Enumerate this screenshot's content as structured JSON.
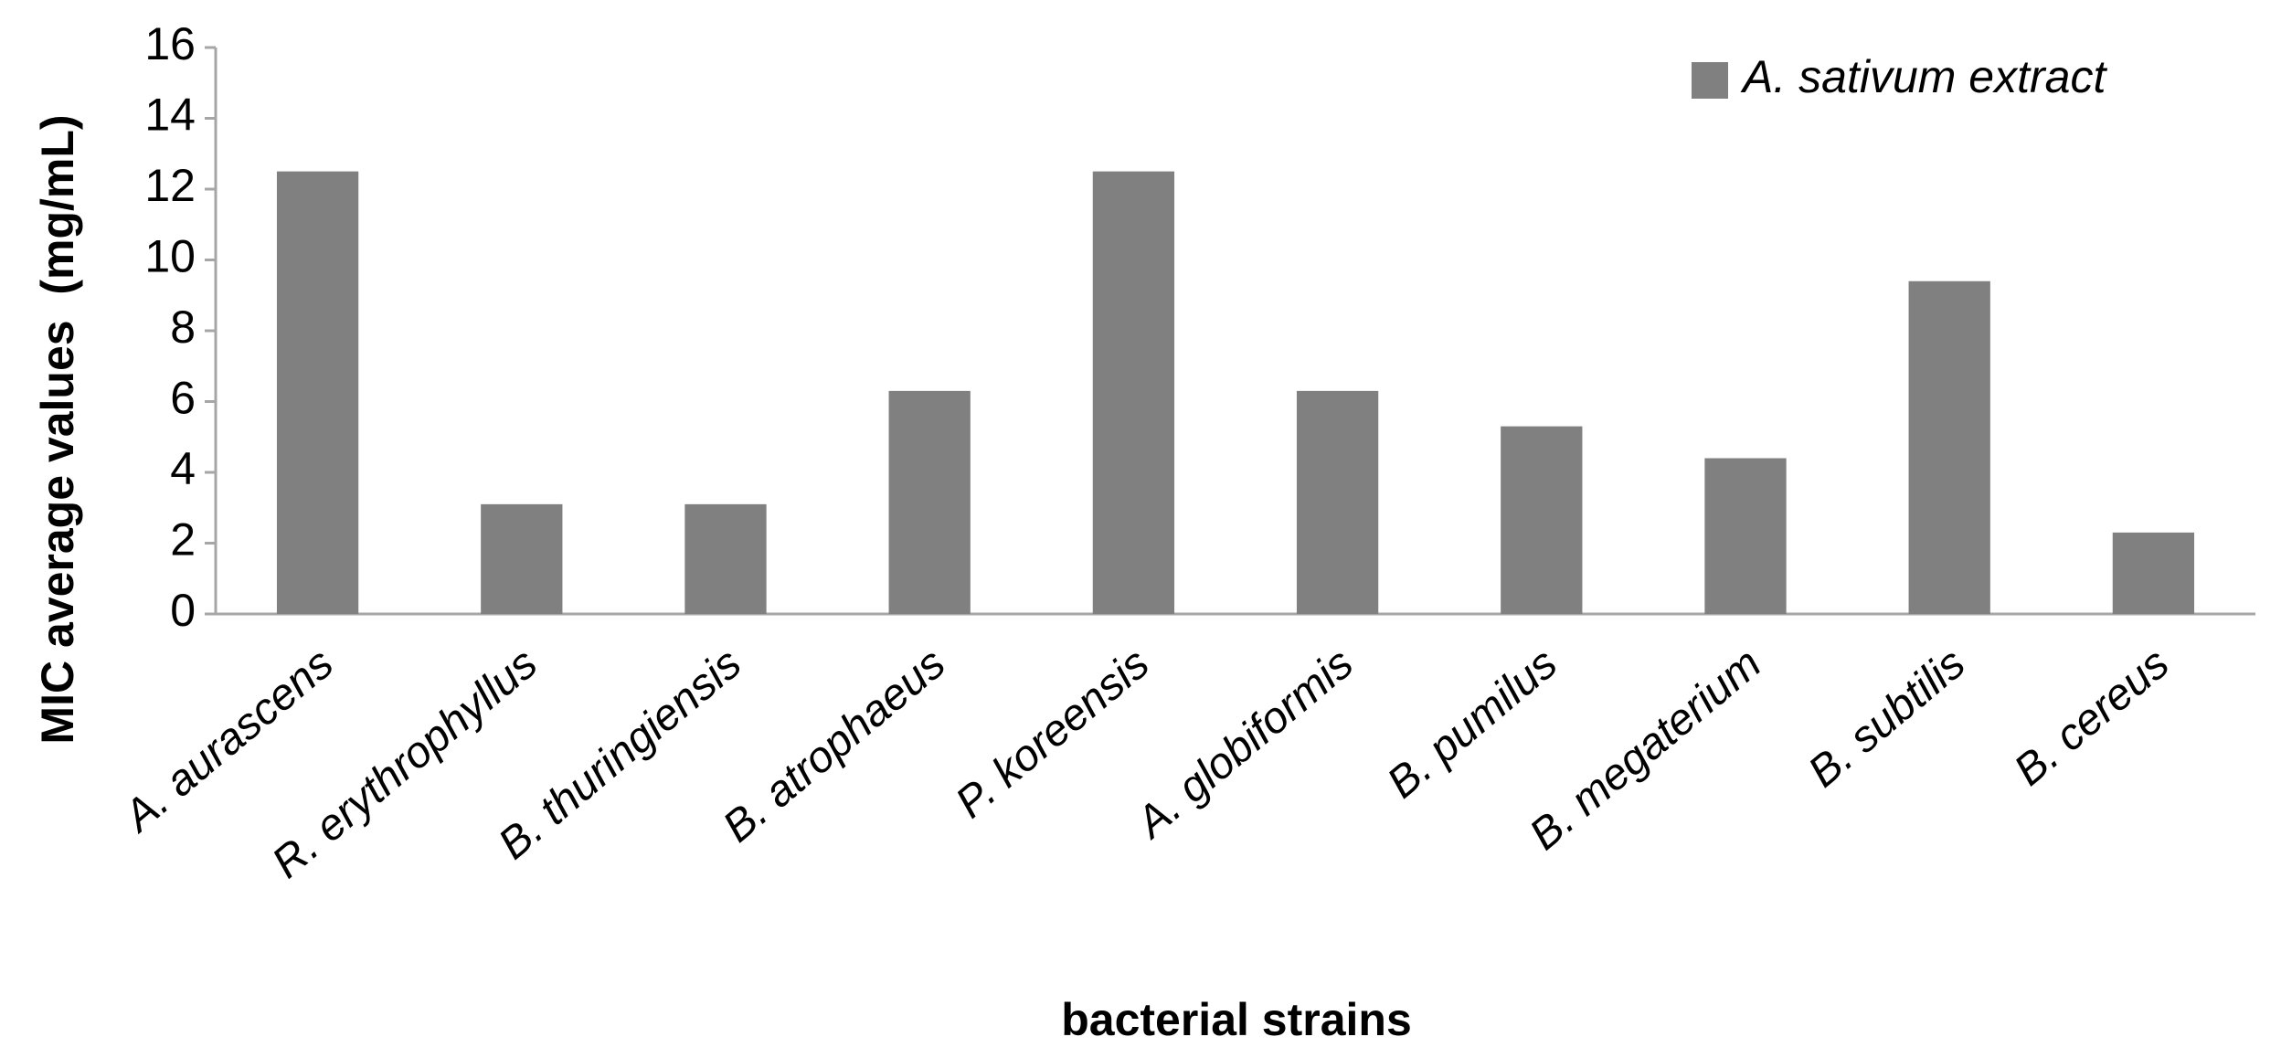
{
  "chart_data": {
    "type": "bar",
    "y_label": "MIC average values  (mg/mL)",
    "x_label": "bacterial strains",
    "categories": [
      "A. aurascens",
      "R. erythrophyllus",
      "B. thuringiensis",
      "B. atrophaeus",
      "P. koreensis",
      "A. globiformis",
      "B. pumilus",
      "B. megaterium",
      "B. subtilis",
      "B. cereus"
    ],
    "series": [
      {
        "name": "A. sativum extract",
        "color": "#808080",
        "values": [
          12.5,
          3.1,
          3.1,
          6.3,
          12.5,
          6.3,
          5.3,
          4.4,
          9.4,
          2.3
        ]
      }
    ],
    "ylim": [
      0,
      16
    ],
    "yticks": [
      0,
      2,
      4,
      6,
      8,
      10,
      12,
      14,
      16
    ],
    "grid": false,
    "legend": "upper right"
  }
}
